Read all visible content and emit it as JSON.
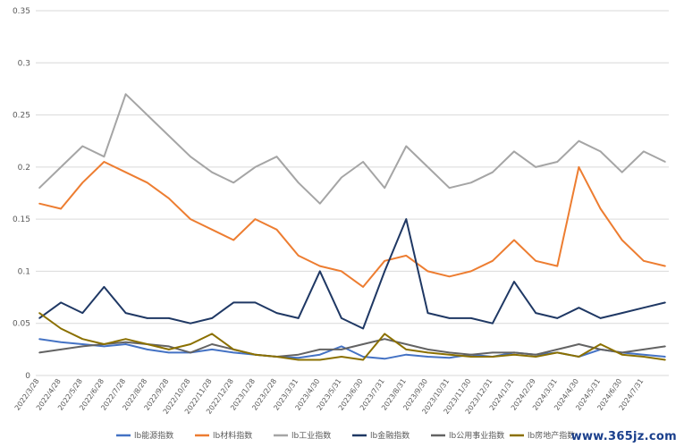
{
  "chart_data": {
    "type": "line",
    "title": "",
    "xlabel": "",
    "ylabel": "",
    "ylim": [
      0,
      0.35
    ],
    "yticks": [
      "0",
      "0.05",
      "0.1",
      "0.15",
      "0.2",
      "0.25",
      "0.3",
      "0.35"
    ],
    "grid": "horizontal",
    "legend_position": "bottom",
    "x_tick_labels": [
      "2022/3/28",
      "2022/4/28",
      "2022/5/28",
      "2022/6/28",
      "2022/7/28",
      "2022/8/28",
      "2022/9/28",
      "2022/10/28",
      "2022/11/28",
      "2022/12/28",
      "2023/1/28",
      "2023/2/28",
      "2023/3/31",
      "2023/4/30",
      "2023/5/31",
      "2023/6/30",
      "2023/7/31",
      "2023/8/31",
      "2023/9/30",
      "2023/10/31",
      "2023/11/30",
      "2023/12/31",
      "2024/1/31",
      "2024/2/29",
      "2024/3/31",
      "2024/4/30",
      "2024/5/31",
      "2024/6/30",
      "2024/7/31"
    ],
    "x": [
      "2022/3/28",
      "2022/4/28",
      "2022/5/28",
      "2022/6/28",
      "2022/7/28",
      "2022/8/28",
      "2022/9/28",
      "2022/10/28",
      "2022/11/28",
      "2022/12/28",
      "2023/1/28",
      "2023/2/28",
      "2023/3/31",
      "2023/4/30",
      "2023/5/31",
      "2023/6/30",
      "2023/7/31",
      "2023/8/31",
      "2023/9/30",
      "2023/10/31",
      "2023/11/30",
      "2023/12/31",
      "2024/1/31",
      "2024/2/29",
      "2024/3/31",
      "2024/4/30",
      "2024/5/31",
      "2024/6/30",
      "2024/7/31",
      "2024/8/20"
    ],
    "series": [
      {
        "name": "lb能源指数",
        "color": "#4472C4",
        "values": [
          0.035,
          0.032,
          0.03,
          0.028,
          0.03,
          0.025,
          0.022,
          0.022,
          0.025,
          0.022,
          0.02,
          0.018,
          0.017,
          0.02,
          0.028,
          0.018,
          0.016,
          0.02,
          0.018,
          0.017,
          0.02,
          0.018,
          0.022,
          0.02,
          0.022,
          0.018,
          0.025,
          0.022,
          0.02,
          0.018
        ]
      },
      {
        "name": "lb材料指数",
        "color": "#ED7D31",
        "values": [
          0.165,
          0.16,
          0.185,
          0.205,
          0.195,
          0.185,
          0.17,
          0.15,
          0.14,
          0.13,
          0.15,
          0.14,
          0.115,
          0.105,
          0.1,
          0.085,
          0.11,
          0.115,
          0.1,
          0.095,
          0.1,
          0.11,
          0.13,
          0.11,
          0.105,
          0.2,
          0.16,
          0.13,
          0.11,
          0.105
        ]
      },
      {
        "name": "lb工业指数",
        "color": "#A5A5A5",
        "values": [
          0.18,
          0.2,
          0.22,
          0.21,
          0.27,
          0.25,
          0.23,
          0.21,
          0.195,
          0.185,
          0.2,
          0.21,
          0.185,
          0.165,
          0.19,
          0.205,
          0.18,
          0.22,
          0.2,
          0.18,
          0.185,
          0.195,
          0.215,
          0.2,
          0.205,
          0.225,
          0.215,
          0.195,
          0.215,
          0.205
        ]
      },
      {
        "name": "lb金融指数",
        "color": "#1F3864",
        "values": [
          0.055,
          0.07,
          0.06,
          0.085,
          0.06,
          0.055,
          0.055,
          0.05,
          0.055,
          0.07,
          0.07,
          0.06,
          0.055,
          0.1,
          0.055,
          0.045,
          0.1,
          0.15,
          0.06,
          0.055,
          0.055,
          0.05,
          0.09,
          0.06,
          0.055,
          0.065,
          0.055,
          0.06,
          0.065,
          0.07
        ]
      },
      {
        "name": "lb公用事业指数",
        "color": "#636363",
        "values": [
          0.022,
          0.025,
          0.028,
          0.03,
          0.032,
          0.03,
          0.028,
          0.022,
          0.03,
          0.025,
          0.02,
          0.018,
          0.02,
          0.025,
          0.025,
          0.03,
          0.035,
          0.03,
          0.025,
          0.022,
          0.02,
          0.022,
          0.022,
          0.02,
          0.025,
          0.03,
          0.025,
          0.022,
          0.025,
          0.028
        ]
      },
      {
        "name": "lb房地产指数",
        "color": "#8B7000",
        "values": [
          0.06,
          0.045,
          0.035,
          0.03,
          0.035,
          0.03,
          0.025,
          0.03,
          0.04,
          0.025,
          0.02,
          0.018,
          0.015,
          0.015,
          0.018,
          0.015,
          0.04,
          0.025,
          0.022,
          0.02,
          0.018,
          0.018,
          0.02,
          0.018,
          0.022,
          0.018,
          0.03,
          0.02,
          0.018,
          0.015
        ]
      }
    ]
  },
  "watermark": "www.365jz.com"
}
